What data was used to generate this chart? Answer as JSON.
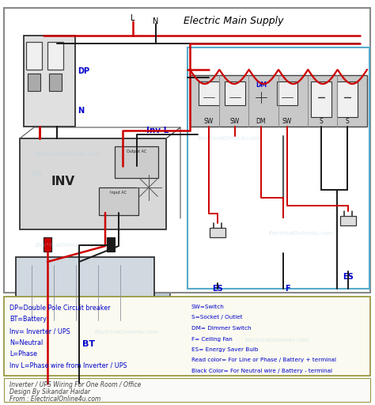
{
  "title": "Electric Main Supply",
  "bg_color": "#ffffff",
  "legend_left": [
    "DP=Double Pole Circuit breaker",
    "BT=Battery",
    "Inv= Inverter / UPS",
    "N=Neutral",
    "L=Phase",
    "Inv L=Phase wire from Inverter / UPS"
  ],
  "legend_right": [
    "SW=Switch",
    "S=Socket / Outlet",
    "DM= Dimmer Switch",
    "F= Ceiling Fan",
    "ES= Energy Saver Bulb",
    "Read color= For Line or Phase / Battery + terminal",
    "Black Color= For Neutral wire / Battery - terminal"
  ],
  "footer": [
    "Inverter / UPS Wiring For One Room / Office",
    "Design By Sikandar Haidar",
    "From : ElectricalOnline4u.com"
  ],
  "wire_red": "#cc0000",
  "wire_black": "#1a1a1a",
  "label_blue": "#0000cc",
  "legend_color": "#0000cc",
  "footer_color": "#444444",
  "border_dark": "#888888",
  "border_room": "#55aacc",
  "legend_border": "#999944",
  "footer_border": "#999944",
  "panel_gray": "#c8c8c8",
  "inv_gray": "#d8d8d8",
  "bt_fill": "#d0d0d0",
  "dp_fill": "#e0e0e0",
  "watermark_color": "#aaccdd"
}
